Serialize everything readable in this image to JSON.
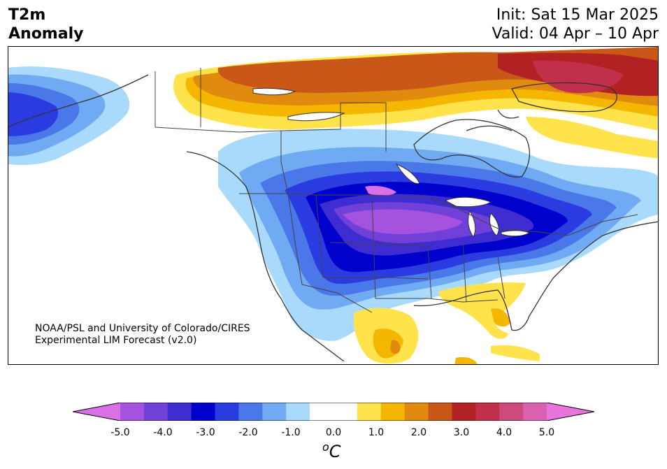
{
  "header": {
    "title_line1": "T2m",
    "title_line2": "Anomaly",
    "init": "Init: Sat 15 Mar 2025",
    "valid": "Valid: 04 Apr – 10 Apr"
  },
  "credit": {
    "line1": "NOAA/PSL and University of Colorado/CIRES",
    "line2": "Experimental LIM Forecast (v2.0)"
  },
  "colorbar": {
    "unit_base": "C",
    "unit_prefix": "o",
    "tick_labels": [
      "-5.0",
      "-4.0",
      "-3.0",
      "-2.0",
      "-1.0",
      "0.0",
      "1.0",
      "2.0",
      "3.0",
      "4.0",
      "5.0"
    ],
    "colors": [
      "#da70e6",
      "#a552de",
      "#7040d8",
      "#3e2cd0",
      "#0000cc",
      "#2a3ce0",
      "#4a78e8",
      "#70aaf2",
      "#a9dafc",
      "#ffffff",
      "#ffffff",
      "#fee34c",
      "#f5b600",
      "#e08a10",
      "#c95818",
      "#b22222",
      "#c0304a",
      "#cc4a7c",
      "#da60b0",
      "#e874dc"
    ]
  },
  "map": {
    "region": "North America",
    "field": "2 m temperature anomaly"
  }
}
